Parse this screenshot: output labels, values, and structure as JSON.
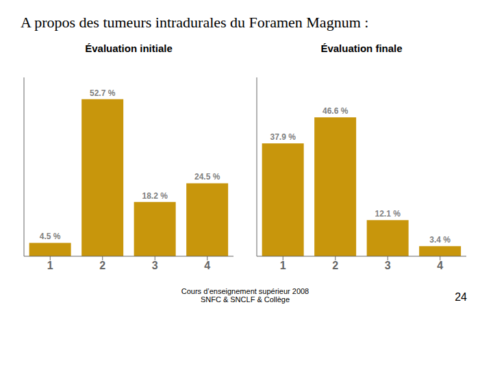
{
  "title": "A propos des tumeurs intradurales du Foramen Magnum :",
  "annotations": [
    "Cours d’enseignement supérieur 2008",
    "SNFC & SNCLF & Collège",
    "24"
  ],
  "chart_data": [
    {
      "type": "bar",
      "title": "Évaluation initiale",
      "categories": [
        "1",
        "2",
        "3",
        "4"
      ],
      "values": [
        4.5,
        52.7,
        18.2,
        24.5
      ],
      "value_labels": [
        "4.5 %",
        "52.7 %",
        "18.2 %",
        "24.5 %"
      ],
      "data_labels": true,
      "color": "#C8960C",
      "ylim": [
        0,
        60
      ],
      "tick_labels": "x",
      "grid": false
    },
    {
      "type": "bar",
      "title": "Évaluation finale",
      "categories": [
        "1",
        "2",
        "3",
        "4"
      ],
      "values": [
        37.9,
        46.6,
        12.1,
        3.4
      ],
      "value_labels": [
        "37.9 %",
        "46.6 %",
        "12.1 %",
        "3.4 %"
      ],
      "data_labels": true,
      "color": "#C8960C",
      "ylim": [
        0,
        60
      ],
      "tick_labels": "x",
      "grid": false
    }
  ]
}
